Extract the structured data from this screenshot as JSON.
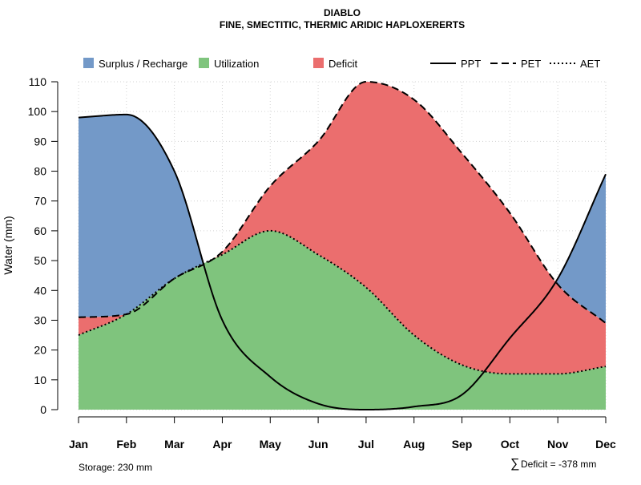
{
  "chart_data": {
    "type": "area",
    "title": "DIABLO",
    "subtitle": "FINE, SMECTITIC, THERMIC ARIDIC HAPLOXERERTS",
    "ylabel": "Water (mm)",
    "xlabel": "",
    "ylim": [
      0,
      110
    ],
    "yticks": [
      0,
      10,
      20,
      30,
      40,
      50,
      60,
      70,
      80,
      90,
      100,
      110
    ],
    "grid": true,
    "legend_placement": "top",
    "categories": [
      "Jan",
      "Feb",
      "Mar",
      "Apr",
      "May",
      "Jun",
      "Jul",
      "Aug",
      "Sep",
      "Oct",
      "Nov",
      "Dec"
    ],
    "series": [
      {
        "name": "PPT",
        "style": "solid",
        "values": [
          98,
          99,
          80,
          30,
          11,
          2,
          0,
          1,
          5,
          24,
          44,
          79
        ]
      },
      {
        "name": "PET",
        "style": "dashed",
        "values": [
          31,
          32,
          44,
          53,
          75,
          90,
          110,
          104,
          86,
          66,
          42,
          29
        ]
      },
      {
        "name": "AET",
        "style": "dotted",
        "values": [
          25,
          32,
          44,
          52,
          60,
          52,
          41,
          25,
          15,
          12,
          12,
          14.5
        ]
      }
    ],
    "areas": [
      {
        "name": "Surplus / Recharge",
        "color": "#7399C8"
      },
      {
        "name": "Utilization",
        "color": "#7FC47D"
      },
      {
        "name": "Deficit",
        "color": "#EB6E6E"
      }
    ],
    "legend": [
      {
        "name": "Surplus / Recharge",
        "kind": "box",
        "color": "#7399C8"
      },
      {
        "name": "Utilization",
        "kind": "box",
        "color": "#7FC47D"
      },
      {
        "name": "Deficit",
        "kind": "box",
        "color": "#EB6E6E"
      },
      {
        "name": "PPT",
        "kind": "line",
        "style": "solid"
      },
      {
        "name": "PET",
        "kind": "line",
        "style": "dashed"
      },
      {
        "name": "AET",
        "kind": "line",
        "style": "dotted"
      }
    ],
    "annotations": {
      "storage": "Storage: 230 mm",
      "deficit_symbol": "∑",
      "deficit": "Deficit = -378 mm"
    }
  }
}
